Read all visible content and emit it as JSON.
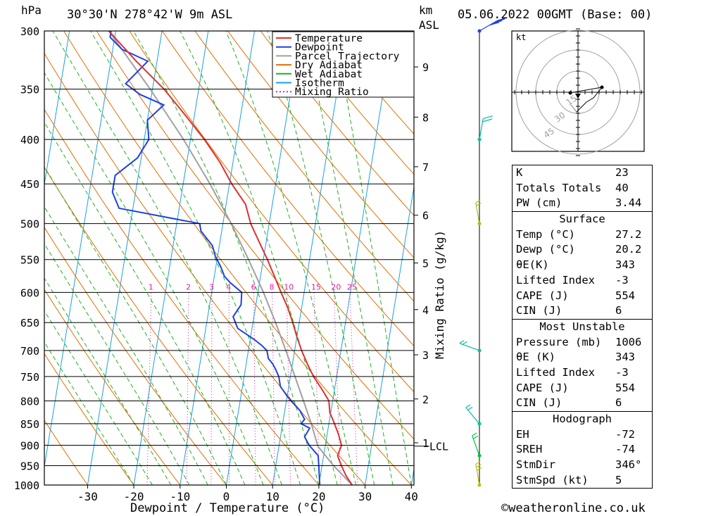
{
  "header": {
    "location": "30°30'N  278°42'W  9m  ASL",
    "datetime": "05.06.2022  00GMT  (Base: 00)",
    "left_unit": "hPa",
    "right_unit_km": "km",
    "right_unit_asl": "ASL"
  },
  "chart_data": {
    "type": "line",
    "title": "",
    "xlabel": "Dewpoint / Temperature (°C)",
    "ylabel": "hPa",
    "y2label": "Mixing Ratio (g/kg)",
    "pressure_levels": [
      300,
      350,
      400,
      450,
      500,
      550,
      600,
      650,
      700,
      750,
      800,
      850,
      900,
      950,
      1000
    ],
    "temperature_ticks": [
      -30,
      -20,
      -10,
      0,
      10,
      20,
      30,
      40
    ],
    "km_ticks": [
      {
        "km": "1",
        "p": 894
      },
      {
        "km": "2",
        "p": 796
      },
      {
        "km": "3",
        "p": 708
      },
      {
        "km": "4",
        "p": 628
      },
      {
        "km": "5",
        "p": 555
      },
      {
        "km": "6",
        "p": 489
      },
      {
        "km": "7",
        "p": 430
      },
      {
        "km": "8",
        "p": 377
      },
      {
        "km": "9",
        "p": 330
      }
    ],
    "lcl": {
      "label": "LCL",
      "p": 902
    },
    "mixing_ratio_labels": [
      "1",
      "2",
      "3",
      "4",
      "6",
      "8",
      "10",
      "15",
      "20",
      "25"
    ],
    "legend": {
      "position": "top-left",
      "entries": [
        {
          "name": "Temperature",
          "color": "#e03030",
          "style": "solid"
        },
        {
          "name": "Dewpoint",
          "color": "#2040e0",
          "style": "solid"
        },
        {
          "name": "Parcel Trajectory",
          "color": "#a0a0a0",
          "style": "solid"
        },
        {
          "name": "Dry Adiabat",
          "color": "#e07000",
          "style": "solid"
        },
        {
          "name": "Wet Adiabat",
          "color": "#20b020",
          "style": "solid"
        },
        {
          "name": "Isotherm",
          "color": "#1aa0e0",
          "style": "solid"
        },
        {
          "name": "Mixing Ratio",
          "color": "#e020a0",
          "style": "dotted"
        }
      ]
    },
    "series": [
      {
        "name": "Temperature",
        "points": [
          [
            1000,
            27.2
          ],
          [
            975,
            25.5
          ],
          [
            950,
            24.2
          ],
          [
            925,
            23
          ],
          [
            900,
            23.5
          ],
          [
            875,
            22.5
          ],
          [
            850,
            21.2
          ],
          [
            825,
            19.8
          ],
          [
            800,
            19.2
          ],
          [
            775,
            17.2
          ],
          [
            750,
            15.0
          ],
          [
            725,
            13.2
          ],
          [
            700,
            11.5
          ],
          [
            675,
            10.0
          ],
          [
            650,
            8.6
          ],
          [
            625,
            7.0
          ],
          [
            600,
            5.0
          ],
          [
            575,
            3.0
          ],
          [
            550,
            0.9
          ],
          [
            525,
            -1.5
          ],
          [
            500,
            -4.0
          ],
          [
            475,
            -5.8
          ],
          [
            450,
            -9.5
          ],
          [
            425,
            -12.8
          ],
          [
            400,
            -17.0
          ],
          [
            375,
            -22.0
          ],
          [
            350,
            -27.5
          ],
          [
            325,
            -34.5
          ],
          [
            300,
            -41.5
          ]
        ]
      },
      {
        "name": "Dewpoint",
        "points": [
          [
            1000,
            20.2
          ],
          [
            950,
            19.3
          ],
          [
            925,
            18.8
          ],
          [
            900,
            16.5
          ],
          [
            880,
            15.2
          ],
          [
            860,
            16.0
          ],
          [
            850,
            14.0
          ],
          [
            840,
            14.6
          ],
          [
            820,
            13.2
          ],
          [
            800,
            11.0
          ],
          [
            790,
            10.0
          ],
          [
            770,
            8.2
          ],
          [
            750,
            7.5
          ],
          [
            735,
            6.5
          ],
          [
            725,
            5.7
          ],
          [
            715,
            4.6
          ],
          [
            700,
            4.0
          ],
          [
            690,
            2.6
          ],
          [
            680,
            0.9
          ],
          [
            660,
            -3.1
          ],
          [
            640,
            -4.5
          ],
          [
            620,
            -3.2
          ],
          [
            600,
            -3.5
          ],
          [
            585,
            -6.3
          ],
          [
            575,
            -7.8
          ],
          [
            560,
            -9.0
          ],
          [
            545,
            -10.5
          ],
          [
            530,
            -11.5
          ],
          [
            510,
            -14.5
          ],
          [
            500,
            -15.0
          ],
          [
            480,
            -33.0
          ],
          [
            460,
            -35.0
          ],
          [
            440,
            -35.0
          ],
          [
            420,
            -30.8
          ],
          [
            400,
            -29.0
          ],
          [
            380,
            -30.0
          ],
          [
            365,
            -27.0
          ],
          [
            355,
            -32.5
          ],
          [
            345,
            -36.0
          ],
          [
            335,
            -34.0
          ],
          [
            325,
            -32.0
          ],
          [
            315,
            -38.0
          ],
          [
            305,
            -41.0
          ],
          [
            300,
            -41.0
          ]
        ]
      },
      {
        "name": "Parcel Trajectory",
        "points": [
          [
            1000,
            27.2
          ],
          [
            950,
            22.5
          ],
          [
            902,
            18.4
          ],
          [
            850,
            16.2
          ],
          [
            800,
            13.7
          ],
          [
            750,
            11.0
          ],
          [
            700,
            8.1
          ],
          [
            650,
            4.9
          ],
          [
            600,
            1.2
          ],
          [
            550,
            -3.2
          ],
          [
            500,
            -8.2
          ],
          [
            450,
            -14.2
          ],
          [
            400,
            -21.5
          ],
          [
            350,
            -30.5
          ],
          [
            300,
            -41.5
          ]
        ]
      }
    ]
  },
  "hodograph": {
    "unit": "kt",
    "ring_labels": [
      "15",
      "30",
      "45"
    ]
  },
  "indices": {
    "general": [
      {
        "k": "K",
        "v": "23"
      },
      {
        "k": "Totals Totals",
        "v": "40"
      },
      {
        "k": "PW (cm)",
        "v": "3.44"
      }
    ],
    "surface": {
      "title": "Surface",
      "rows": [
        {
          "k": "Temp (°C)",
          "v": "27.2"
        },
        {
          "k": "Dewp (°C)",
          "v": "20.2"
        },
        {
          "k": "θE(K)",
          "v": "343"
        },
        {
          "k": "Lifted Index",
          "v": "-3"
        },
        {
          "k": "CAPE (J)",
          "v": "554"
        },
        {
          "k": "CIN (J)",
          "v": "6"
        }
      ]
    },
    "most_unstable": {
      "title": "Most Unstable",
      "rows": [
        {
          "k": "Pressure (mb)",
          "v": "1006"
        },
        {
          "k": "θE (K)",
          "v": "343"
        },
        {
          "k": "Lifted Index",
          "v": "-3"
        },
        {
          "k": "CAPE (J)",
          "v": "554"
        },
        {
          "k": "CIN (J)",
          "v": "6"
        }
      ]
    },
    "hodograph_section": {
      "title": "Hodograph",
      "rows": [
        {
          "k": "EH",
          "v": "-72"
        },
        {
          "k": "SREH",
          "v": "-74"
        },
        {
          "k": "StmDir",
          "v": "346°"
        },
        {
          "k": "StmSpd (kt)",
          "v": "5"
        }
      ]
    }
  },
  "footer": {
    "copyright": "©weatheronline.co.uk"
  },
  "colors": {
    "temperature": "#e03030",
    "dewpoint": "#2040e0",
    "parcel": "#a0a0a0",
    "dry_adiabat": "#e07000",
    "wet_adiabat": "#20b020",
    "isotherm": "#1aa0e0",
    "mixing_ratio": "#e020a0",
    "wind": "#00c0a0"
  }
}
